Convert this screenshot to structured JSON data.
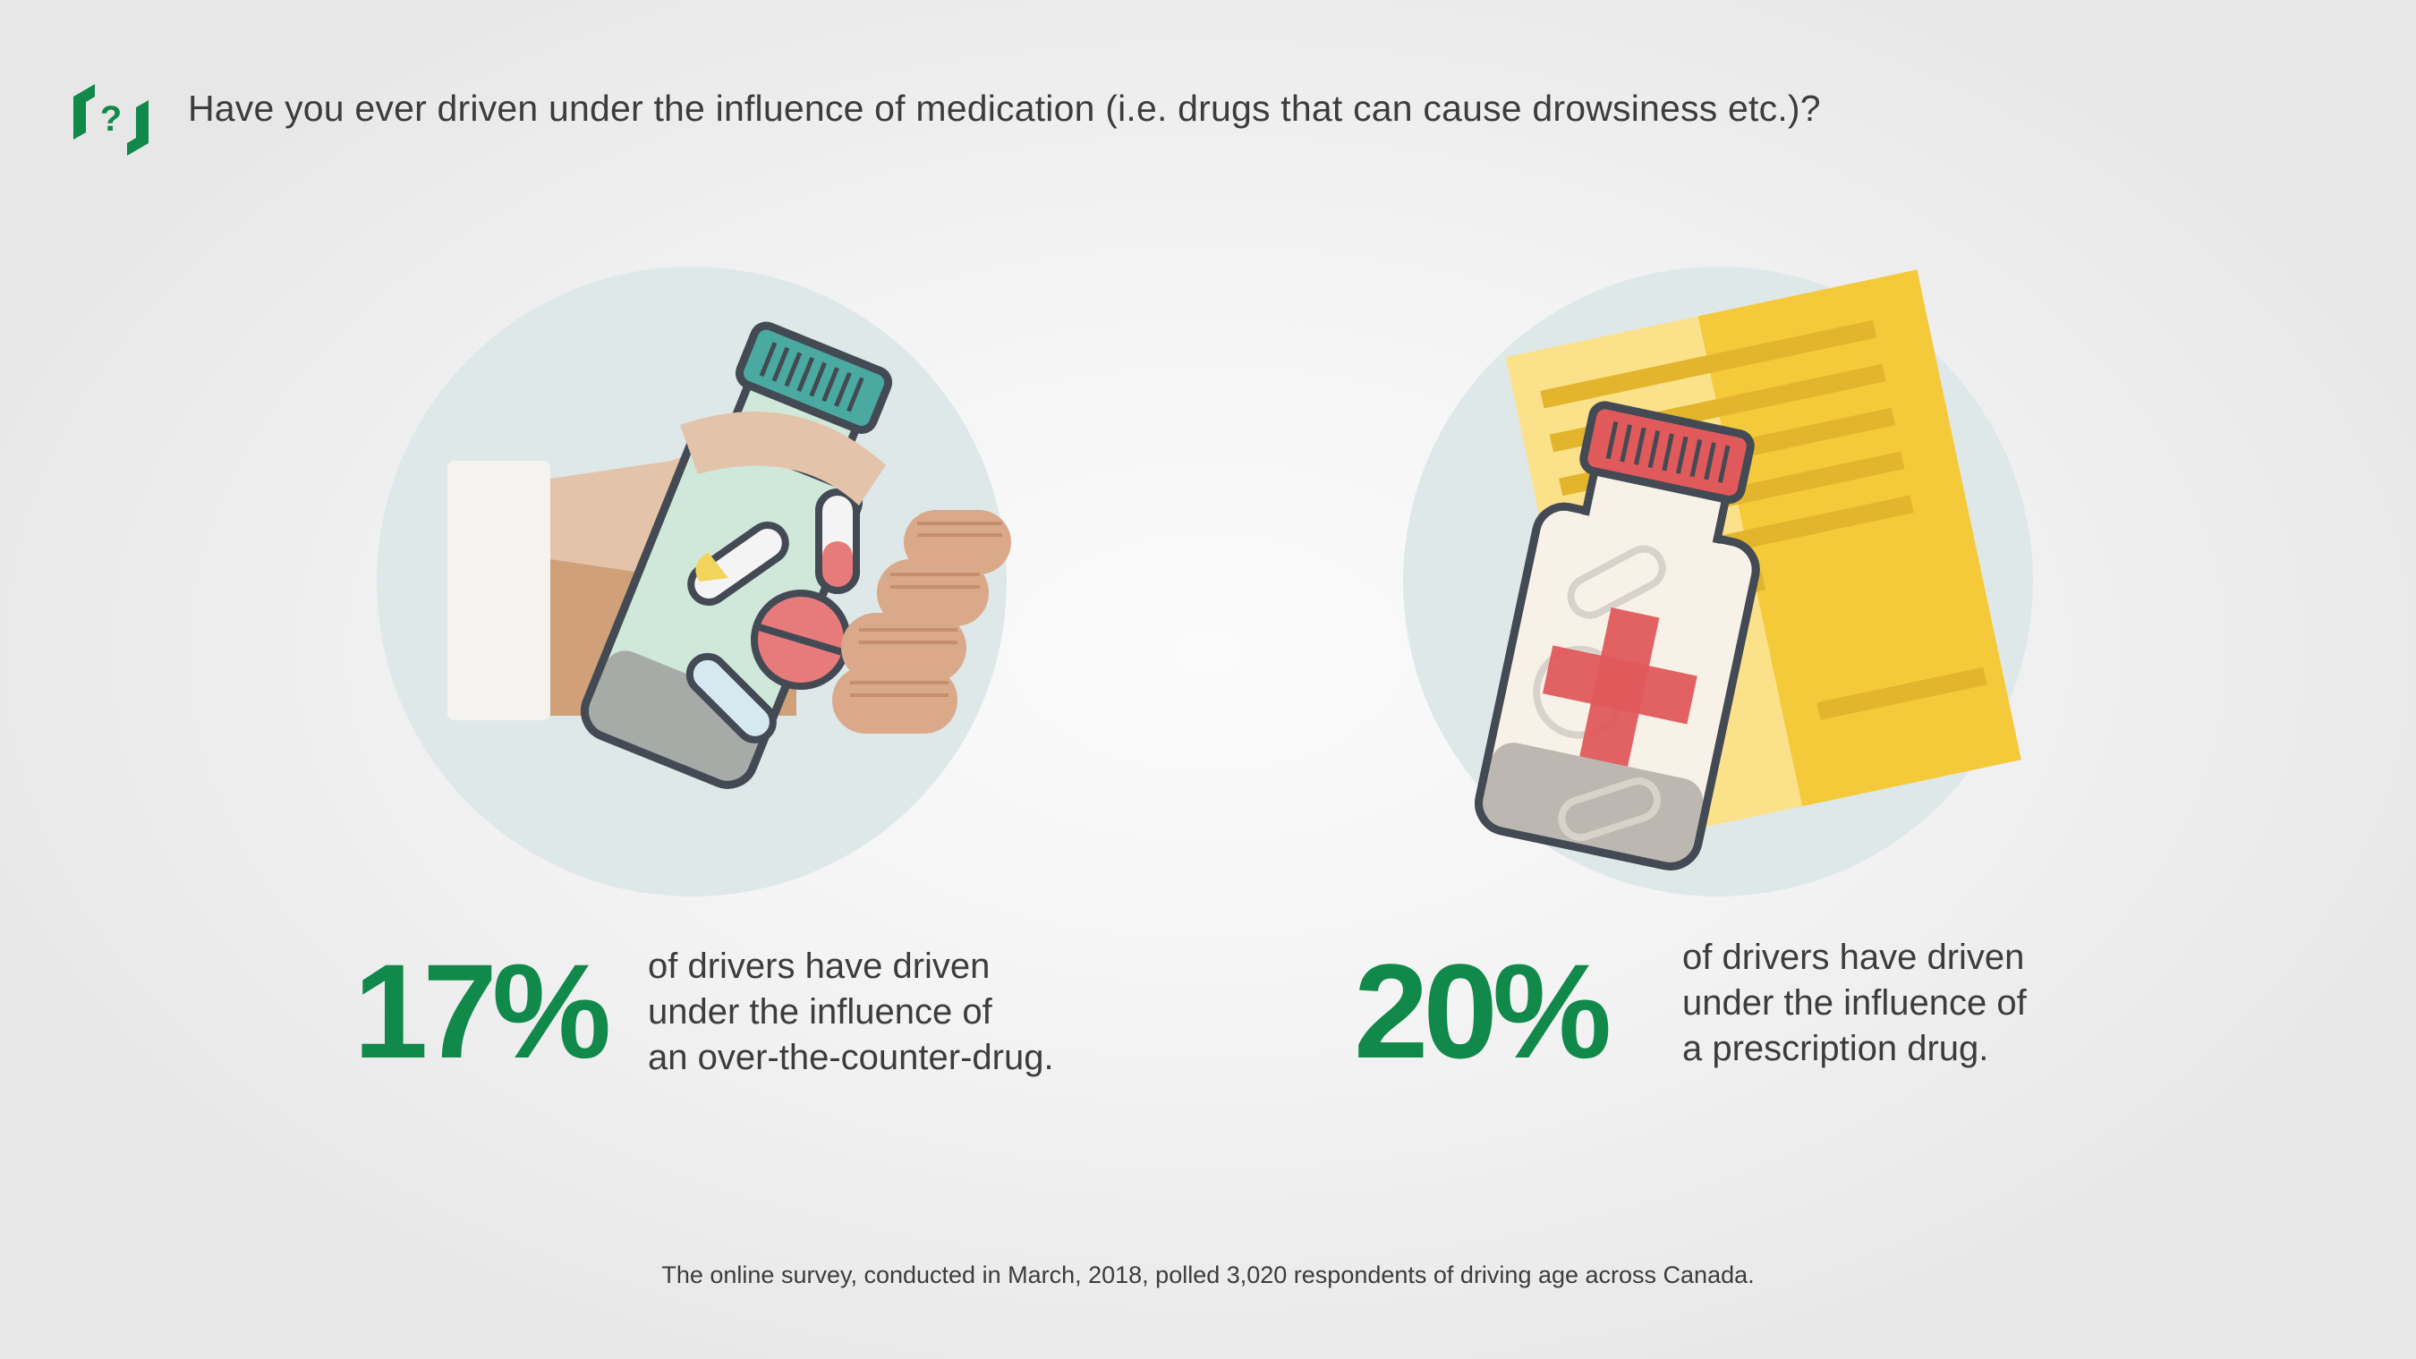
{
  "header": {
    "logo_icon": "bracket-question-logo-icon",
    "question": "Have you ever driven under the influence of medication (i.e. drugs that can cause drowsiness etc.)?"
  },
  "stats": [
    {
      "percent": "17%",
      "description": "of drivers have driven\nunder the influence of\nan over-the-counter-drug.",
      "illustration": "hand-holding-pill-bottle-icon"
    },
    {
      "percent": "20%",
      "description": "of drivers have driven\nunder the influence of\na prescription drug.",
      "illustration": "prescription-bottle-and-paper-icon"
    }
  ],
  "footnote": "The online survey, conducted in March, 2018, polled 3,020 respondents of driving age across Canada.",
  "colors": {
    "accent_green": "#10894a",
    "text": "#3c3c3c",
    "circle_bg": "#dfe8e9",
    "prescription_yellow": "#f4c93a",
    "cap_teal": "#4aa9a0",
    "cap_red": "#e0595b"
  }
}
